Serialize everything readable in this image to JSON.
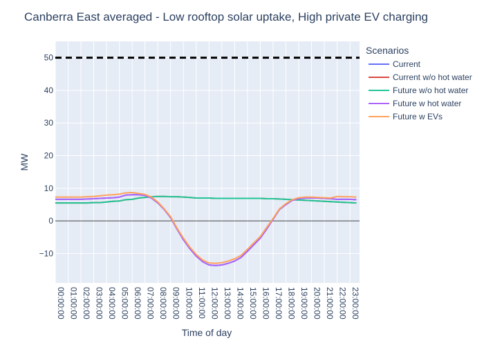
{
  "chart_data": {
    "type": "line",
    "title": "Canberra East averaged - Low rooftop solar uptake, High private EV charging",
    "xlabel": "Time of day",
    "ylabel": "MW",
    "ylim": [
      -19,
      55
    ],
    "yticks": [
      -10,
      0,
      10,
      20,
      30,
      40,
      50
    ],
    "x_categories": [
      "00:00:00",
      "01:00:00",
      "02:00:00",
      "03:00:00",
      "04:00:00",
      "05:00:00",
      "06:00:00",
      "07:00:00",
      "08:00:00",
      "09:00:00",
      "10:00:00",
      "11:00:00",
      "12:00:00",
      "13:00:00",
      "14:00:00",
      "15:00:00",
      "16:00:00",
      "17:00:00",
      "18:00:00",
      "19:00:00",
      "20:00:00",
      "21:00:00",
      "22:00:00",
      "23:00:00"
    ],
    "x_range_hours": [
      0,
      23.75
    ],
    "grid": true,
    "legend_title": "Scenarios",
    "legend_position": "right",
    "threshold_line": {
      "value": 50,
      "style": "dashed",
      "color": "#000000"
    },
    "zero_line": {
      "value": 0,
      "color": "#444444"
    },
    "x_hours": [
      0,
      0.5,
      1,
      1.5,
      2,
      2.5,
      3,
      3.5,
      4,
      4.5,
      5,
      5.5,
      6,
      6.5,
      7,
      7.5,
      8,
      8.5,
      9,
      9.5,
      10,
      10.5,
      11,
      11.5,
      12,
      12.5,
      13,
      13.5,
      14,
      14.5,
      15,
      15.5,
      16,
      16.5,
      17,
      17.5,
      18,
      18.5,
      19,
      19.5,
      20,
      20.5,
      21,
      21.5,
      22,
      22.5,
      23,
      23.5
    ],
    "series": [
      {
        "name": "Current",
        "color": "#636efa",
        "values": [
          6.6,
          6.6,
          6.6,
          6.6,
          6.6,
          6.7,
          6.8,
          6.9,
          7.0,
          7.1,
          7.3,
          7.9,
          8.0,
          8.0,
          7.8,
          7.0,
          5.5,
          3.5,
          1.0,
          -2.5,
          -5.8,
          -8.5,
          -10.8,
          -12.5,
          -13.5,
          -13.7,
          -13.5,
          -13.0,
          -12.3,
          -11.2,
          -9.3,
          -7.3,
          -5.3,
          -2.5,
          0.5,
          3.5,
          5.0,
          6.3,
          6.8,
          7.0,
          7.0,
          7.0,
          6.9,
          6.8,
          6.6,
          6.6,
          6.6,
          6.5
        ]
      },
      {
        "name": "Current w/o hot water",
        "color": "#d9463b",
        "values": [
          5.5,
          5.5,
          5.5,
          5.5,
          5.5,
          5.5,
          5.6,
          5.6,
          5.8,
          6.0,
          6.1,
          6.5,
          6.6,
          7.0,
          7.2,
          7.4,
          7.5,
          7.5,
          7.4,
          7.4,
          7.3,
          7.2,
          7.0,
          7.0,
          7.0,
          6.9,
          6.9,
          6.9,
          6.9,
          6.9,
          6.9,
          6.9,
          6.9,
          6.8,
          6.8,
          6.7,
          6.6,
          6.5,
          6.4,
          6.3,
          6.2,
          6.1,
          6.0,
          5.9,
          5.8,
          5.7,
          5.6,
          5.5
        ]
      },
      {
        "name": "Future w/o hot water",
        "color": "#1fc596",
        "values": [
          5.5,
          5.5,
          5.5,
          5.5,
          5.5,
          5.5,
          5.6,
          5.6,
          5.8,
          6.0,
          6.1,
          6.5,
          6.6,
          7.0,
          7.2,
          7.4,
          7.5,
          7.5,
          7.4,
          7.4,
          7.3,
          7.2,
          7.0,
          7.0,
          7.0,
          6.9,
          6.9,
          6.9,
          6.9,
          6.9,
          6.9,
          6.9,
          6.9,
          6.8,
          6.8,
          6.7,
          6.6,
          6.5,
          6.4,
          6.3,
          6.2,
          6.1,
          6.0,
          5.9,
          5.8,
          5.7,
          5.6,
          5.5
        ]
      },
      {
        "name": "Future w hot water",
        "color": "#ab63fa",
        "values": [
          6.6,
          6.6,
          6.6,
          6.6,
          6.6,
          6.7,
          6.8,
          6.9,
          7.0,
          7.1,
          7.3,
          7.9,
          8.0,
          8.0,
          7.8,
          7.0,
          5.5,
          3.5,
          1.0,
          -2.5,
          -5.8,
          -8.5,
          -10.8,
          -12.5,
          -13.5,
          -13.7,
          -13.5,
          -13.0,
          -12.3,
          -11.2,
          -9.3,
          -7.3,
          -5.3,
          -2.5,
          0.5,
          3.5,
          5.0,
          6.3,
          6.8,
          7.0,
          7.0,
          7.0,
          6.9,
          6.8,
          6.6,
          6.6,
          6.6,
          6.5
        ]
      },
      {
        "name": "Future w EVs",
        "color": "#ffa15a",
        "values": [
          7.3,
          7.3,
          7.3,
          7.3,
          7.3,
          7.4,
          7.5,
          7.7,
          7.9,
          8.0,
          8.2,
          8.6,
          8.7,
          8.4,
          8.1,
          7.3,
          5.8,
          3.7,
          1.3,
          -2.2,
          -5.3,
          -8.0,
          -10.3,
          -12.0,
          -12.9,
          -13.0,
          -12.8,
          -12.3,
          -11.6,
          -10.6,
          -8.7,
          -6.7,
          -4.8,
          -2.0,
          0.7,
          3.7,
          5.3,
          6.5,
          7.1,
          7.3,
          7.3,
          7.2,
          7.1,
          7.0,
          7.5,
          7.4,
          7.4,
          7.3
        ]
      }
    ]
  }
}
